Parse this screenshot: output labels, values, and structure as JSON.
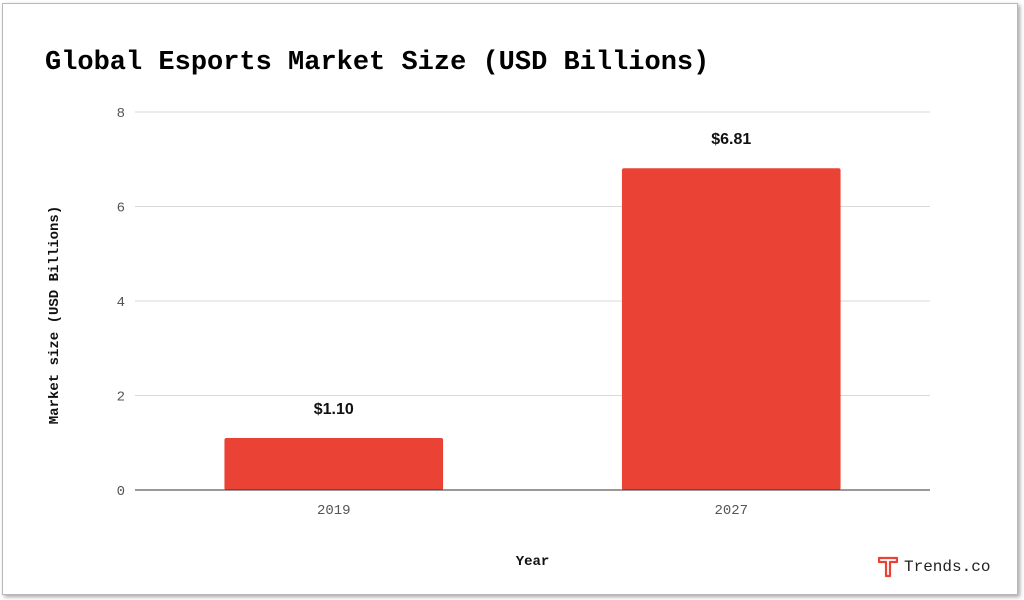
{
  "chart_data": {
    "type": "bar",
    "title": "Global Esports Market Size (USD Billions)",
    "xlabel": "Year",
    "ylabel": "Market size (USD Billions)",
    "categories": [
      "2019",
      "2027"
    ],
    "values": [
      1.1,
      6.81
    ],
    "data_labels": [
      "$1.10",
      "$6.81"
    ],
    "ylim": [
      0,
      8
    ],
    "yticks": [
      0,
      2,
      4,
      6,
      8
    ],
    "grid": true,
    "legend": "none",
    "colors": {
      "bar": "#ea4335",
      "grid": "#d9d9d9",
      "axis": "#333333"
    }
  },
  "brand": {
    "name": "Trends.co",
    "logo_icon": "t-letter-icon",
    "logo_color": "#ea4335"
  }
}
